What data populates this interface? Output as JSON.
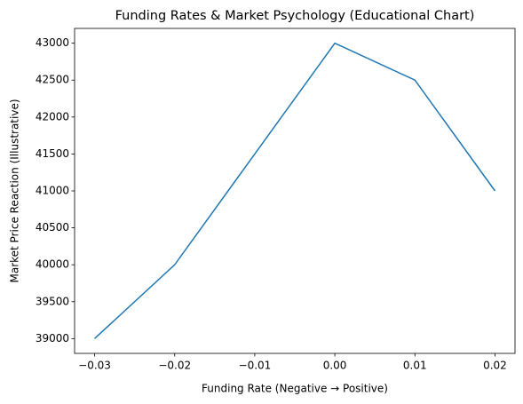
{
  "chart_data": {
    "type": "line",
    "title": "Funding Rates & Market Psychology (Educational Chart)",
    "xlabel": "Funding Rate (Negative → Positive)",
    "ylabel": "Market Price Reaction (Illustrative)",
    "x": [
      -0.03,
      -0.02,
      -0.01,
      0,
      0.01,
      0.02
    ],
    "series": [
      {
        "color": "#1f77b4",
        "values": [
          39000,
          40000,
          41500,
          43000,
          42500,
          41000
        ]
      }
    ],
    "xlim": [
      -0.0325,
      0.0225
    ],
    "xticks": [
      {
        "value": -0.03,
        "label": "−0.03"
      },
      {
        "value": -0.02,
        "label": "−0.02"
      },
      {
        "value": -0.01,
        "label": "−0.01"
      },
      {
        "value": 0,
        "label": "0.00"
      },
      0.01,
      0.02
    ],
    "ylim": [
      38800,
      43200
    ],
    "yticks": [
      39000,
      39500,
      40000,
      40500,
      41000,
      41500,
      42000,
      42500,
      43000
    ],
    "grid": false
  }
}
